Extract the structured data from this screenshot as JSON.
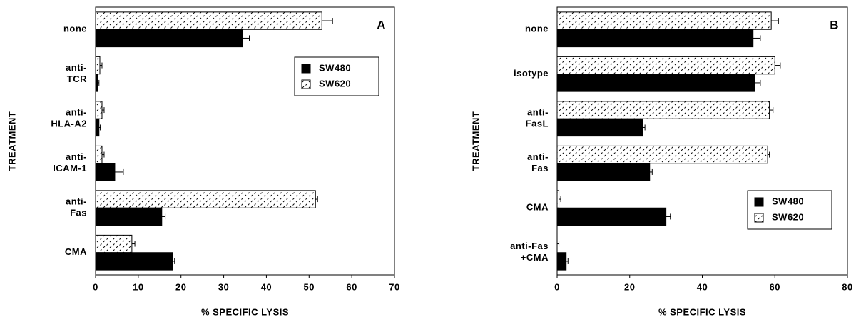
{
  "chart_data": [
    {
      "type": "bar",
      "orientation": "horizontal",
      "label": "A",
      "xlabel": "% SPECIFIC LYSIS",
      "ylabel": "TREATMENT",
      "categories": [
        "none",
        "anti-\nTCR",
        "anti-\nHLA-A2",
        "anti-\nICAM-1",
        "anti-\nFas",
        "CMA"
      ],
      "series": [
        {
          "name": "SW620",
          "color": "#ffffff",
          "hatch": true,
          "values": [
            53,
            1,
            1.5,
            1.5,
            51.5,
            8.5
          ],
          "errors": [
            2.5,
            0.5,
            0.5,
            0.5,
            0.5,
            0.7
          ]
        },
        {
          "name": "SW480",
          "color": "#000000",
          "hatch": false,
          "values": [
            34.5,
            0.5,
            0.8,
            4.5,
            15.5,
            18
          ],
          "errors": [
            1.5,
            0.3,
            0.3,
            2,
            0.8,
            0.5
          ]
        }
      ],
      "legend_order": [
        1,
        0
      ],
      "legend": "upper right",
      "xlim": [
        0,
        70
      ],
      "xticks": [
        0,
        10,
        20,
        30,
        40,
        50,
        60,
        70
      ]
    },
    {
      "type": "bar",
      "orientation": "horizontal",
      "label": "B",
      "xlabel": "% SPECIFIC LYSIS",
      "ylabel": "TREATMENT",
      "categories": [
        "none",
        "isotype",
        "anti-\nFasL",
        "anti-\nFas",
        "CMA",
        "anti-Fas\n+CMA"
      ],
      "series": [
        {
          "name": "SW620",
          "color": "#ffffff",
          "hatch": true,
          "values": [
            59,
            60,
            58.5,
            58,
            0.5,
            0
          ],
          "errors": [
            2,
            1.5,
            1,
            0.5,
            0.5,
            0.5
          ]
        },
        {
          "name": "SW480",
          "color": "#000000",
          "hatch": false,
          "values": [
            54,
            54.5,
            23.5,
            25.5,
            30,
            2.5
          ],
          "errors": [
            2,
            1.5,
            0.7,
            0.7,
            1.2,
            0.5
          ]
        }
      ],
      "legend_order": [
        1,
        0
      ],
      "legend": "lower right",
      "xlim": [
        0,
        80
      ],
      "xticks": [
        0,
        20,
        40,
        60,
        80
      ]
    }
  ]
}
